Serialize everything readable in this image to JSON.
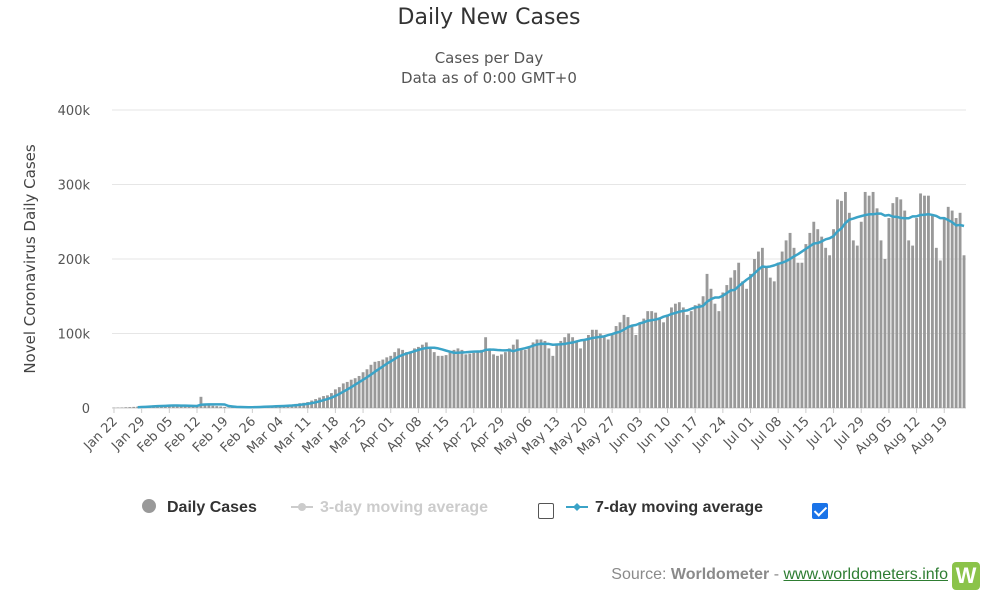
{
  "chart_data": {
    "type": "bar",
    "title": "Daily New Cases",
    "subtitle": [
      "Cases per Day",
      "Data as of 0:00 GMT+0"
    ],
    "ylabel": "Novel Coronavirus Daily Cases",
    "xlabel": "",
    "ylim": [
      0,
      400000
    ],
    "yticks": [
      "0",
      "100k",
      "200k",
      "300k",
      "400k"
    ],
    "xticks": [
      "Jan 22",
      "Jan 29",
      "Feb 05",
      "Feb 12",
      "Feb 19",
      "Feb 26",
      "Mar 04",
      "Mar 11",
      "Mar 18",
      "Mar 25",
      "Apr 01",
      "Apr 08",
      "Apr 15",
      "Apr 22",
      "Apr 29",
      "May 06",
      "May 13",
      "May 20",
      "May 27",
      "Jun 03",
      "Jun 10",
      "Jun 17",
      "Jun 24",
      "Jul 01",
      "Jul 08",
      "Jul 15",
      "Jul 22",
      "Jul 29",
      "Aug 05",
      "Aug 12",
      "Aug 19"
    ],
    "grid": true,
    "legend_position": "bottom",
    "series": [
      {
        "name": "Daily Cases",
        "type": "bar",
        "color": "#999999",
        "weekly_values": [
          [
            500,
            600,
            700,
            1000,
            1200,
            1500,
            1800
          ],
          [
            2000,
            2500,
            3000,
            3500,
            3000,
            3500,
            3000
          ],
          [
            3500,
            3800,
            3000,
            2500,
            3000,
            2500,
            2000
          ],
          [
            2500,
            15000,
            5000,
            4000,
            3000,
            2500,
            2000
          ],
          [
            1500,
            500,
            900,
            600,
            1000,
            1200,
            1400
          ],
          [
            1500,
            1800,
            2000,
            2500,
            2500,
            2800,
            3000
          ],
          [
            3000,
            3500,
            4000,
            4500,
            5500,
            6500,
            7000
          ],
          [
            8000,
            10000,
            12000,
            14000,
            16000,
            17000,
            20000
          ],
          [
            25000,
            28000,
            33000,
            35000,
            38000,
            40000,
            43000
          ],
          [
            48000,
            52000,
            58000,
            62000,
            63000,
            65000,
            68000
          ],
          [
            70000,
            75000,
            80000,
            78000,
            75000,
            76000,
            80000
          ],
          [
            82000,
            85000,
            88000,
            80000,
            75000,
            70000,
            70000
          ],
          [
            71000,
            75000,
            78000,
            80000,
            78000,
            72000,
            73000
          ],
          [
            74000,
            76000,
            78000,
            95000,
            80000,
            72000,
            70000
          ],
          [
            72000,
            75000,
            80000,
            85000,
            92000,
            80000,
            78000
          ],
          [
            82000,
            88000,
            92000,
            92000,
            90000,
            80000,
            70000
          ],
          [
            85000,
            90000,
            95000,
            100000,
            95000,
            90000,
            80000
          ],
          [
            90000,
            98000,
            105000,
            105000,
            100000,
            95000,
            92000
          ],
          [
            100000,
            110000,
            115000,
            125000,
            122000,
            110000,
            98000
          ],
          [
            115000,
            120000,
            130000,
            130000,
            128000,
            120000,
            115000
          ],
          [
            125000,
            135000,
            140000,
            142000,
            135000,
            125000,
            130000
          ],
          [
            138000,
            140000,
            150000,
            180000,
            160000,
            140000,
            130000
          ],
          [
            155000,
            165000,
            175000,
            185000,
            195000,
            170000,
            160000
          ],
          [
            180000,
            200000,
            210000,
            215000,
            190000,
            175000,
            170000
          ],
          [
            195000,
            210000,
            225000,
            235000,
            215000,
            195000,
            195000
          ],
          [
            220000,
            235000,
            250000,
            240000,
            230000,
            215000,
            205000
          ],
          [
            240000,
            280000,
            278000,
            290000,
            262000,
            225000,
            218000
          ],
          [
            250000,
            290000,
            285000,
            290000,
            268000,
            225000,
            200000
          ],
          [
            255000,
            275000,
            283000,
            280000,
            265000,
            225000,
            218000
          ],
          [
            255000,
            288000,
            285000,
            285000,
            258000,
            215000,
            198000
          ],
          [
            255000,
            270000,
            265000,
            255000,
            262000,
            205000
          ]
        ]
      },
      {
        "name": "3-day moving average",
        "type": "line",
        "visible": false,
        "color": "#cccccc"
      },
      {
        "name": "7-day moving average",
        "type": "line",
        "visible": true,
        "color": "#3ba3c7",
        "derived_from": "Daily Cases"
      }
    ]
  },
  "legend": {
    "daily_cases": "Daily Cases",
    "ma3": "3-day moving average",
    "ma7": "7-day moving average",
    "ma3_checked": false,
    "ma7_checked": true
  },
  "source": {
    "prefix": "Source: ",
    "name": "Worldometer",
    "separator": " - ",
    "link": "www.worldometers.info",
    "logo_letter": "W"
  },
  "colors": {
    "bar": "#999999",
    "line": "#3ba3c7",
    "grid": "#e6e6e6",
    "checkbox_checked": "#1a73e8",
    "logo": "#8bc34a"
  }
}
